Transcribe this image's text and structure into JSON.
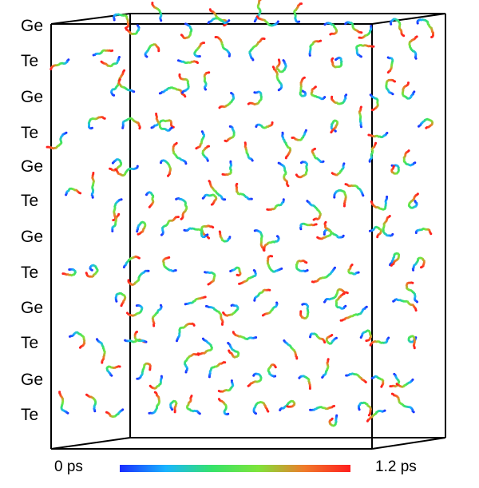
{
  "layers": [
    "Ge",
    "Te",
    "Ge",
    "Te",
    "Ge",
    "Te",
    "Ge",
    "Te",
    "Ge",
    "Te",
    "Ge",
    "Te"
  ],
  "colorbar": {
    "start_label": "0 ps",
    "end_label": "1.2 ps",
    "colors": [
      "#1a2cff",
      "#19b4ff",
      "#35e36a",
      "#7ee43a",
      "#f07a2a",
      "#ff1e1e"
    ]
  }
}
